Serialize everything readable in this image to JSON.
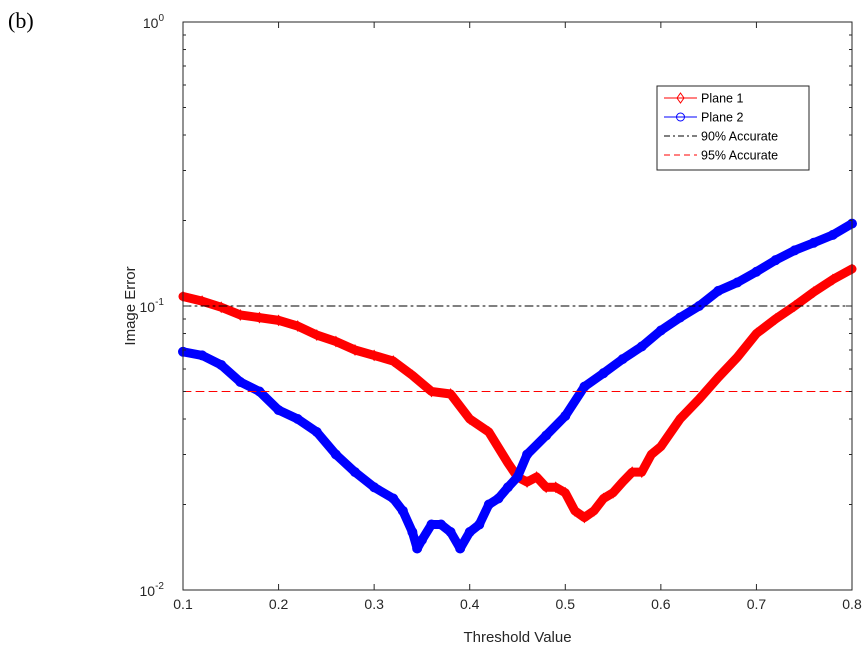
{
  "panel_label": "(b)",
  "chart_data": {
    "type": "line",
    "xlabel": "Threshold Value",
    "ylabel": "Image Error",
    "xlim": [
      0.1,
      0.8
    ],
    "ylim": [
      0.01,
      1
    ],
    "yscale": "log",
    "x_ticks": [
      "0.1",
      "0.2",
      "0.3",
      "0.4",
      "0.5",
      "0.6",
      "0.7",
      "0.8"
    ],
    "y_ticks": [
      {
        "value": 0.01,
        "base": "10",
        "exp": "-2"
      },
      {
        "value": 0.1,
        "base": "10",
        "exp": "-1"
      },
      {
        "value": 1,
        "base": "10",
        "exp": "0"
      }
    ],
    "grid": false,
    "legend_position": "top-right",
    "series": [
      {
        "name": "Plane 1",
        "color": "#ff0000",
        "marker": "diamond",
        "style": "solid",
        "x": [
          0.1,
          0.12,
          0.14,
          0.16,
          0.18,
          0.2,
          0.22,
          0.24,
          0.26,
          0.28,
          0.3,
          0.32,
          0.34,
          0.36,
          0.38,
          0.4,
          0.42,
          0.44,
          0.45,
          0.46,
          0.47,
          0.48,
          0.49,
          0.5,
          0.51,
          0.52,
          0.53,
          0.54,
          0.55,
          0.56,
          0.57,
          0.58,
          0.59,
          0.6,
          0.62,
          0.64,
          0.66,
          0.68,
          0.7,
          0.72,
          0.74,
          0.76,
          0.78,
          0.8
        ],
        "y": [
          0.108,
          0.104,
          0.099,
          0.093,
          0.091,
          0.089,
          0.085,
          0.079,
          0.075,
          0.07,
          0.067,
          0.064,
          0.057,
          0.05,
          0.049,
          0.04,
          0.036,
          0.028,
          0.025,
          0.024,
          0.025,
          0.023,
          0.023,
          0.022,
          0.019,
          0.018,
          0.019,
          0.021,
          0.022,
          0.024,
          0.026,
          0.026,
          0.03,
          0.032,
          0.04,
          0.047,
          0.056,
          0.066,
          0.08,
          0.09,
          0.1,
          0.112,
          0.124,
          0.135
        ]
      },
      {
        "name": "Plane 2",
        "color": "#0000ff",
        "marker": "circle",
        "style": "solid",
        "x": [
          0.1,
          0.12,
          0.14,
          0.16,
          0.18,
          0.2,
          0.22,
          0.24,
          0.26,
          0.28,
          0.3,
          0.32,
          0.33,
          0.34,
          0.345,
          0.35,
          0.36,
          0.37,
          0.38,
          0.39,
          0.4,
          0.41,
          0.42,
          0.43,
          0.44,
          0.45,
          0.46,
          0.48,
          0.5,
          0.52,
          0.54,
          0.56,
          0.58,
          0.6,
          0.62,
          0.64,
          0.66,
          0.68,
          0.7,
          0.72,
          0.74,
          0.76,
          0.78,
          0.8
        ],
        "y": [
          0.069,
          0.067,
          0.062,
          0.054,
          0.05,
          0.043,
          0.04,
          0.036,
          0.03,
          0.026,
          0.023,
          0.021,
          0.019,
          0.016,
          0.014,
          0.015,
          0.017,
          0.017,
          0.016,
          0.014,
          0.016,
          0.017,
          0.02,
          0.021,
          0.023,
          0.025,
          0.03,
          0.035,
          0.041,
          0.052,
          0.058,
          0.065,
          0.072,
          0.082,
          0.091,
          0.1,
          0.113,
          0.121,
          0.132,
          0.145,
          0.157,
          0.167,
          0.178,
          0.195
        ]
      },
      {
        "name": "90% Accurate",
        "color": "#000000",
        "style": "dashdot",
        "x": [
          0.1,
          0.8
        ],
        "y": [
          0.1,
          0.1
        ]
      },
      {
        "name": "95% Accurate",
        "color": "#ff0000",
        "style": "dashed",
        "x": [
          0.1,
          0.8
        ],
        "y": [
          0.05,
          0.05
        ]
      }
    ]
  }
}
